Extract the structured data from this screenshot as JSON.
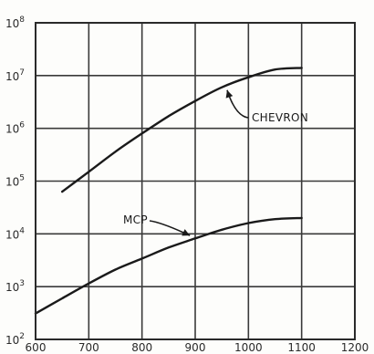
{
  "chart_data": {
    "type": "line",
    "title": "",
    "xlabel": "",
    "ylabel": "",
    "x_scale": "linear",
    "y_scale": "log",
    "xlim": [
      600,
      1200
    ],
    "ylim": [
      100,
      100000000
    ],
    "grid": true,
    "x_ticks": [
      {
        "value": 600,
        "label": "600"
      },
      {
        "value": 700,
        "label": "700"
      },
      {
        "value": 800,
        "label": "800"
      },
      {
        "value": 900,
        "label": "900"
      },
      {
        "value": 1000,
        "label": "1000"
      },
      {
        "value": 1100,
        "label": "1100"
      },
      {
        "value": 1200,
        "label": "1200"
      }
    ],
    "y_ticks": [
      {
        "value": 100,
        "base": "10",
        "exp": "2"
      },
      {
        "value": 1000,
        "base": "10",
        "exp": "3"
      },
      {
        "value": 10000,
        "base": "10",
        "exp": "4"
      },
      {
        "value": 100000,
        "base": "10",
        "exp": "5"
      },
      {
        "value": 1000000,
        "base": "10",
        "exp": "6"
      },
      {
        "value": 10000000,
        "base": "10",
        "exp": "7"
      },
      {
        "value": 100000000,
        "base": "10",
        "exp": "8"
      }
    ],
    "series": [
      {
        "name": "CHEVRON",
        "x": [
          650,
          700,
          750,
          800,
          850,
          900,
          950,
          1000,
          1050,
          1100
        ],
        "y": [
          63000,
          150000,
          360000,
          800000,
          1700000,
          3300000,
          6000000,
          9300000,
          13000000,
          14000000
        ]
      },
      {
        "name": "MCP",
        "x": [
          600,
          650,
          700,
          750,
          800,
          850,
          900,
          950,
          1000,
          1050,
          1100
        ],
        "y": [
          310,
          600,
          1150,
          2100,
          3400,
          5500,
          8200,
          12000,
          16000,
          19000,
          20000
        ]
      }
    ],
    "annotations": [
      {
        "text": "CHEVRON",
        "series": "CHEVRON",
        "arrow_to": {
          "x": 960,
          "y": 5300000
        }
      },
      {
        "text": "MCP",
        "series": "MCP",
        "arrow_to": {
          "x": 890,
          "y": 9300
        }
      }
    ]
  }
}
